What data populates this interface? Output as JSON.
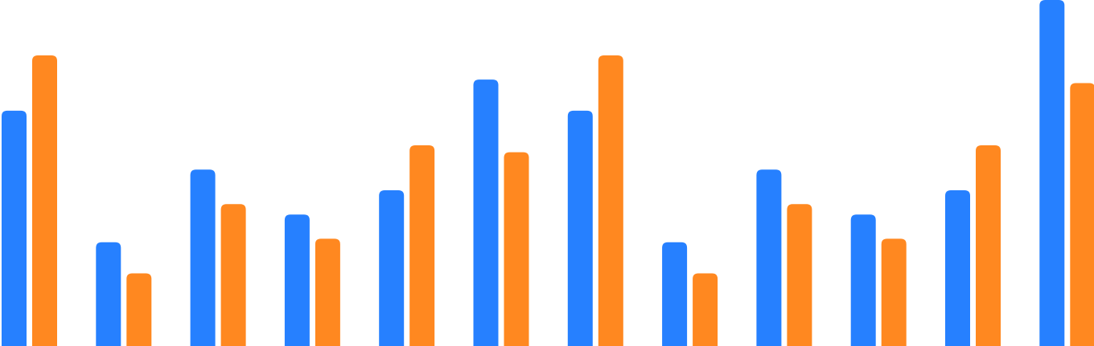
{
  "chart_data": {
    "type": "bar",
    "title": "",
    "xlabel": "",
    "ylabel": "",
    "categories": [
      "",
      "",
      "",
      "",
      "",
      "",
      "",
      "",
      "",
      "",
      "",
      ""
    ],
    "ylim": [
      0,
      100
    ],
    "grid": false,
    "legend": "none",
    "series": [
      {
        "color": "#2680FF",
        "values": [
          68,
          30,
          51,
          38,
          45,
          77,
          68,
          30,
          51,
          38,
          45,
          100
        ]
      },
      {
        "color": "#FF8820",
        "values": [
          84,
          21,
          41,
          31,
          58,
          56,
          84,
          21,
          41,
          31,
          58,
          76
        ]
      }
    ]
  }
}
